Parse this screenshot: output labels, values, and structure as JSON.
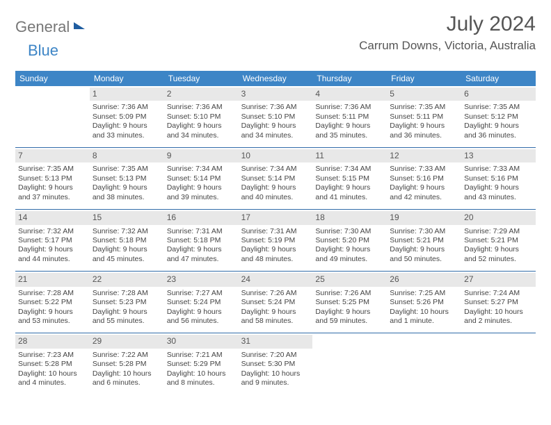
{
  "logo": {
    "part1": "General",
    "part2": "Blue"
  },
  "title": "July 2024",
  "location": "Carrum Downs, Victoria, Australia",
  "day_headers": [
    "Sunday",
    "Monday",
    "Tuesday",
    "Wednesday",
    "Thursday",
    "Friday",
    "Saturday"
  ],
  "colors": {
    "header_bg": "#3d85c6",
    "header_text": "#ffffff",
    "rule": "#2f6aa8",
    "daybg": "#e8e8e8",
    "text": "#444444"
  },
  "weeks": [
    [
      {
        "n": "",
        "l1": "",
        "l2": "",
        "l3": "",
        "l4": ""
      },
      {
        "n": "1",
        "l1": "Sunrise: 7:36 AM",
        "l2": "Sunset: 5:09 PM",
        "l3": "Daylight: 9 hours",
        "l4": "and 33 minutes."
      },
      {
        "n": "2",
        "l1": "Sunrise: 7:36 AM",
        "l2": "Sunset: 5:10 PM",
        "l3": "Daylight: 9 hours",
        "l4": "and 34 minutes."
      },
      {
        "n": "3",
        "l1": "Sunrise: 7:36 AM",
        "l2": "Sunset: 5:10 PM",
        "l3": "Daylight: 9 hours",
        "l4": "and 34 minutes."
      },
      {
        "n": "4",
        "l1": "Sunrise: 7:36 AM",
        "l2": "Sunset: 5:11 PM",
        "l3": "Daylight: 9 hours",
        "l4": "and 35 minutes."
      },
      {
        "n": "5",
        "l1": "Sunrise: 7:35 AM",
        "l2": "Sunset: 5:11 PM",
        "l3": "Daylight: 9 hours",
        "l4": "and 36 minutes."
      },
      {
        "n": "6",
        "l1": "Sunrise: 7:35 AM",
        "l2": "Sunset: 5:12 PM",
        "l3": "Daylight: 9 hours",
        "l4": "and 36 minutes."
      }
    ],
    [
      {
        "n": "7",
        "l1": "Sunrise: 7:35 AM",
        "l2": "Sunset: 5:13 PM",
        "l3": "Daylight: 9 hours",
        "l4": "and 37 minutes."
      },
      {
        "n": "8",
        "l1": "Sunrise: 7:35 AM",
        "l2": "Sunset: 5:13 PM",
        "l3": "Daylight: 9 hours",
        "l4": "and 38 minutes."
      },
      {
        "n": "9",
        "l1": "Sunrise: 7:34 AM",
        "l2": "Sunset: 5:14 PM",
        "l3": "Daylight: 9 hours",
        "l4": "and 39 minutes."
      },
      {
        "n": "10",
        "l1": "Sunrise: 7:34 AM",
        "l2": "Sunset: 5:14 PM",
        "l3": "Daylight: 9 hours",
        "l4": "and 40 minutes."
      },
      {
        "n": "11",
        "l1": "Sunrise: 7:34 AM",
        "l2": "Sunset: 5:15 PM",
        "l3": "Daylight: 9 hours",
        "l4": "and 41 minutes."
      },
      {
        "n": "12",
        "l1": "Sunrise: 7:33 AM",
        "l2": "Sunset: 5:16 PM",
        "l3": "Daylight: 9 hours",
        "l4": "and 42 minutes."
      },
      {
        "n": "13",
        "l1": "Sunrise: 7:33 AM",
        "l2": "Sunset: 5:16 PM",
        "l3": "Daylight: 9 hours",
        "l4": "and 43 minutes."
      }
    ],
    [
      {
        "n": "14",
        "l1": "Sunrise: 7:32 AM",
        "l2": "Sunset: 5:17 PM",
        "l3": "Daylight: 9 hours",
        "l4": "and 44 minutes."
      },
      {
        "n": "15",
        "l1": "Sunrise: 7:32 AM",
        "l2": "Sunset: 5:18 PM",
        "l3": "Daylight: 9 hours",
        "l4": "and 45 minutes."
      },
      {
        "n": "16",
        "l1": "Sunrise: 7:31 AM",
        "l2": "Sunset: 5:18 PM",
        "l3": "Daylight: 9 hours",
        "l4": "and 47 minutes."
      },
      {
        "n": "17",
        "l1": "Sunrise: 7:31 AM",
        "l2": "Sunset: 5:19 PM",
        "l3": "Daylight: 9 hours",
        "l4": "and 48 minutes."
      },
      {
        "n": "18",
        "l1": "Sunrise: 7:30 AM",
        "l2": "Sunset: 5:20 PM",
        "l3": "Daylight: 9 hours",
        "l4": "and 49 minutes."
      },
      {
        "n": "19",
        "l1": "Sunrise: 7:30 AM",
        "l2": "Sunset: 5:21 PM",
        "l3": "Daylight: 9 hours",
        "l4": "and 50 minutes."
      },
      {
        "n": "20",
        "l1": "Sunrise: 7:29 AM",
        "l2": "Sunset: 5:21 PM",
        "l3": "Daylight: 9 hours",
        "l4": "and 52 minutes."
      }
    ],
    [
      {
        "n": "21",
        "l1": "Sunrise: 7:28 AM",
        "l2": "Sunset: 5:22 PM",
        "l3": "Daylight: 9 hours",
        "l4": "and 53 minutes."
      },
      {
        "n": "22",
        "l1": "Sunrise: 7:28 AM",
        "l2": "Sunset: 5:23 PM",
        "l3": "Daylight: 9 hours",
        "l4": "and 55 minutes."
      },
      {
        "n": "23",
        "l1": "Sunrise: 7:27 AM",
        "l2": "Sunset: 5:24 PM",
        "l3": "Daylight: 9 hours",
        "l4": "and 56 minutes."
      },
      {
        "n": "24",
        "l1": "Sunrise: 7:26 AM",
        "l2": "Sunset: 5:24 PM",
        "l3": "Daylight: 9 hours",
        "l4": "and 58 minutes."
      },
      {
        "n": "25",
        "l1": "Sunrise: 7:26 AM",
        "l2": "Sunset: 5:25 PM",
        "l3": "Daylight: 9 hours",
        "l4": "and 59 minutes."
      },
      {
        "n": "26",
        "l1": "Sunrise: 7:25 AM",
        "l2": "Sunset: 5:26 PM",
        "l3": "Daylight: 10 hours",
        "l4": "and 1 minute."
      },
      {
        "n": "27",
        "l1": "Sunrise: 7:24 AM",
        "l2": "Sunset: 5:27 PM",
        "l3": "Daylight: 10 hours",
        "l4": "and 2 minutes."
      }
    ],
    [
      {
        "n": "28",
        "l1": "Sunrise: 7:23 AM",
        "l2": "Sunset: 5:28 PM",
        "l3": "Daylight: 10 hours",
        "l4": "and 4 minutes."
      },
      {
        "n": "29",
        "l1": "Sunrise: 7:22 AM",
        "l2": "Sunset: 5:28 PM",
        "l3": "Daylight: 10 hours",
        "l4": "and 6 minutes."
      },
      {
        "n": "30",
        "l1": "Sunrise: 7:21 AM",
        "l2": "Sunset: 5:29 PM",
        "l3": "Daylight: 10 hours",
        "l4": "and 8 minutes."
      },
      {
        "n": "31",
        "l1": "Sunrise: 7:20 AM",
        "l2": "Sunset: 5:30 PM",
        "l3": "Daylight: 10 hours",
        "l4": "and 9 minutes."
      },
      {
        "n": "",
        "l1": "",
        "l2": "",
        "l3": "",
        "l4": ""
      },
      {
        "n": "",
        "l1": "",
        "l2": "",
        "l3": "",
        "l4": ""
      },
      {
        "n": "",
        "l1": "",
        "l2": "",
        "l3": "",
        "l4": ""
      }
    ]
  ]
}
